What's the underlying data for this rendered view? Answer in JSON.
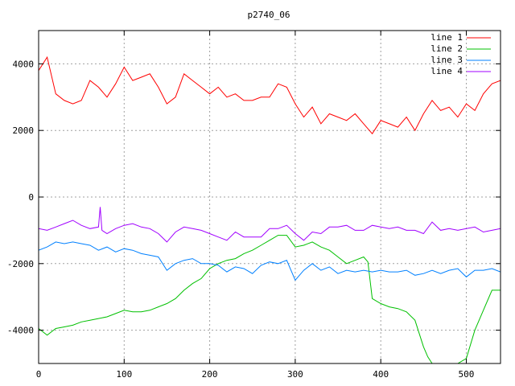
{
  "chart_data": {
    "type": "line",
    "title": "p2740_06",
    "xlabel": "",
    "ylabel": "",
    "xlim": [
      0,
      540
    ],
    "ylim": [
      -5000,
      5000
    ],
    "xticks": [
      0,
      100,
      200,
      300,
      400,
      500
    ],
    "yticks": [
      -4000,
      -2000,
      0,
      2000,
      4000
    ],
    "grid": true,
    "legend_position": "top-right",
    "series": [
      {
        "name": "line 1",
        "color": "#ff0000",
        "x": [
          0,
          10,
          20,
          30,
          40,
          50,
          60,
          70,
          80,
          90,
          100,
          110,
          120,
          130,
          140,
          150,
          160,
          170,
          180,
          190,
          200,
          210,
          220,
          230,
          240,
          250,
          260,
          270,
          280,
          290,
          300,
          310,
          320,
          330,
          340,
          350,
          360,
          370,
          380,
          390,
          400,
          410,
          420,
          430,
          440,
          450,
          460,
          470,
          480,
          490,
          500,
          510,
          520,
          530,
          540
        ],
        "y": [
          3800,
          4200,
          3100,
          2900,
          2800,
          2900,
          3500,
          3300,
          3000,
          3400,
          3900,
          3500,
          3600,
          3700,
          3300,
          2800,
          3000,
          3700,
          3500,
          3300,
          3100,
          3300,
          3000,
          3100,
          2900,
          2900,
          3000,
          3000,
          3400,
          3300,
          2800,
          2400,
          2700,
          2200,
          2500,
          2400,
          2300,
          2500,
          2200,
          1900,
          2300,
          2200,
          2100,
          2400,
          2000,
          2500,
          2900,
          2600,
          2700,
          2400,
          2800,
          2600,
          3100,
          3400,
          3500
        ]
      },
      {
        "name": "line 2",
        "color": "#00c000",
        "x": [
          0,
          10,
          20,
          30,
          40,
          50,
          60,
          70,
          80,
          90,
          100,
          110,
          120,
          130,
          140,
          150,
          160,
          170,
          180,
          190,
          200,
          210,
          220,
          230,
          240,
          250,
          260,
          270,
          280,
          290,
          300,
          310,
          320,
          330,
          340,
          350,
          360,
          370,
          380,
          385,
          390,
          400,
          410,
          420,
          430,
          440,
          450,
          455,
          460,
          470,
          480,
          490,
          500,
          510,
          520,
          530,
          540
        ],
        "y": [
          -3950,
          -4150,
          -3950,
          -3900,
          -3850,
          -3750,
          -3700,
          -3650,
          -3600,
          -3500,
          -3400,
          -3450,
          -3450,
          -3400,
          -3300,
          -3200,
          -3050,
          -2800,
          -2600,
          -2450,
          -2150,
          -2000,
          -1900,
          -1850,
          -1700,
          -1600,
          -1450,
          -1300,
          -1150,
          -1150,
          -1500,
          -1450,
          -1350,
          -1500,
          -1600,
          -1800,
          -2000,
          -1900,
          -1800,
          -1950,
          -3050,
          -3200,
          -3300,
          -3350,
          -3450,
          -3700,
          -4500,
          -4800,
          -5000,
          -5000,
          -5000,
          -5000,
          -4850,
          -4000,
          -3400,
          -2800,
          -2800
        ]
      },
      {
        "name": "line 3",
        "color": "#0080ff",
        "x": [
          0,
          10,
          20,
          30,
          40,
          50,
          60,
          70,
          80,
          90,
          100,
          110,
          120,
          130,
          140,
          150,
          160,
          170,
          180,
          190,
          200,
          210,
          220,
          230,
          240,
          250,
          260,
          270,
          280,
          290,
          300,
          310,
          320,
          330,
          340,
          350,
          360,
          370,
          380,
          390,
          400,
          410,
          420,
          430,
          440,
          450,
          460,
          470,
          480,
          490,
          500,
          510,
          520,
          530,
          540
        ],
        "y": [
          -1600,
          -1500,
          -1350,
          -1400,
          -1350,
          -1400,
          -1450,
          -1600,
          -1500,
          -1650,
          -1550,
          -1600,
          -1700,
          -1750,
          -1800,
          -2200,
          -2000,
          -1900,
          -1850,
          -2000,
          -2000,
          -2050,
          -2250,
          -2100,
          -2150,
          -2300,
          -2050,
          -1950,
          -2000,
          -1900,
          -2500,
          -2200,
          -2000,
          -2200,
          -2100,
          -2300,
          -2200,
          -2250,
          -2200,
          -2250,
          -2200,
          -2250,
          -2250,
          -2200,
          -2350,
          -2300,
          -2200,
          -2300,
          -2200,
          -2150,
          -2400,
          -2200,
          -2200,
          -2150,
          -2250
        ]
      },
      {
        "name": "line 4",
        "color": "#a000ff",
        "x": [
          0,
          10,
          20,
          30,
          40,
          50,
          60,
          70,
          72,
          74,
          80,
          90,
          100,
          110,
          120,
          130,
          140,
          150,
          160,
          170,
          180,
          190,
          200,
          210,
          220,
          230,
          240,
          250,
          260,
          270,
          280,
          290,
          300,
          310,
          320,
          330,
          340,
          350,
          360,
          370,
          380,
          390,
          400,
          410,
          420,
          430,
          440,
          450,
          460,
          470,
          480,
          490,
          500,
          510,
          520,
          530,
          540
        ],
        "y": [
          -950,
          -1000,
          -900,
          -800,
          -700,
          -850,
          -950,
          -900,
          -300,
          -1000,
          -1100,
          -950,
          -850,
          -800,
          -900,
          -950,
          -1100,
          -1350,
          -1050,
          -900,
          -950,
          -1000,
          -1100,
          -1200,
          -1300,
          -1050,
          -1200,
          -1200,
          -1200,
          -950,
          -950,
          -850,
          -1100,
          -1300,
          -1050,
          -1100,
          -900,
          -900,
          -850,
          -1000,
          -1000,
          -850,
          -900,
          -950,
          -900,
          -1000,
          -1000,
          -1100,
          -750,
          -1000,
          -950,
          -1000,
          -950,
          -900,
          -1050,
          -1000,
          -950
        ]
      }
    ]
  }
}
